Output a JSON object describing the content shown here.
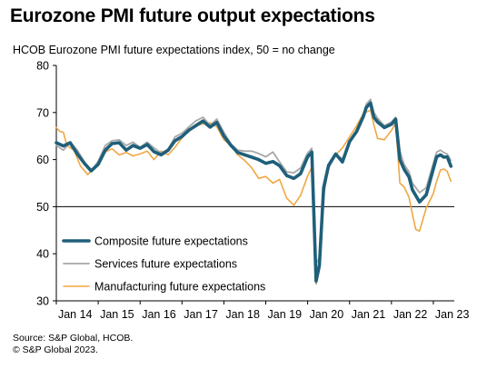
{
  "title": "Eurozone PMI future output expectations",
  "subtitle": "HCOB Eurozone PMI future expectations  index, 50 = no change",
  "source_line1": "Source: S&P Global, HCOB.",
  "source_line2": "© S&P Global 2023.",
  "chart_data": {
    "type": "line",
    "ylim": [
      30,
      80
    ],
    "y_ticks": [
      30,
      40,
      50,
      60,
      70,
      80
    ],
    "x_range": [
      2014.0,
      2023.5
    ],
    "x_ticks": [
      {
        "label": "Jan 14",
        "x": 2014
      },
      {
        "label": "Jan 15",
        "x": 2015
      },
      {
        "label": "Jan 16",
        "x": 2016
      },
      {
        "label": "Jan 17",
        "x": 2017
      },
      {
        "label": "Jan 18",
        "x": 2018
      },
      {
        "label": "Jan 19",
        "x": 2019
      },
      {
        "label": "Jan 20",
        "x": 2020
      },
      {
        "label": "Jan 21",
        "x": 2021
      },
      {
        "label": "Jan 22",
        "x": 2022
      },
      {
        "label": "Jan 23",
        "x": 2023
      }
    ],
    "reference_line": 50,
    "legend_position": "bottom-left",
    "series": [
      {
        "name": "Composite future expectations",
        "color": "#1f5f7a",
        "width": 3.6,
        "points": [
          [
            2014.0,
            63.6
          ],
          [
            2014.17,
            62.9
          ],
          [
            2014.33,
            63.6
          ],
          [
            2014.5,
            61.2
          ],
          [
            2014.67,
            59.2
          ],
          [
            2014.83,
            57.6
          ],
          [
            2015.0,
            59.0
          ],
          [
            2015.17,
            62.0
          ],
          [
            2015.33,
            63.4
          ],
          [
            2015.5,
            63.6
          ],
          [
            2015.67,
            62.0
          ],
          [
            2015.83,
            63.0
          ],
          [
            2016.0,
            62.4
          ],
          [
            2016.17,
            63.2
          ],
          [
            2016.33,
            61.7
          ],
          [
            2016.5,
            61.0
          ],
          [
            2016.67,
            62.0
          ],
          [
            2016.83,
            64.0
          ],
          [
            2017.0,
            64.9
          ],
          [
            2017.17,
            66.3
          ],
          [
            2017.33,
            67.2
          ],
          [
            2017.5,
            68.2
          ],
          [
            2017.67,
            66.9
          ],
          [
            2017.83,
            67.9
          ],
          [
            2018.0,
            65.0
          ],
          [
            2018.17,
            63.0
          ],
          [
            2018.33,
            61.5
          ],
          [
            2018.5,
            61.0
          ],
          [
            2018.67,
            60.5
          ],
          [
            2018.83,
            60.0
          ],
          [
            2019.0,
            59.2
          ],
          [
            2019.17,
            59.6
          ],
          [
            2019.33,
            58.7
          ],
          [
            2019.5,
            56.6
          ],
          [
            2019.67,
            56.0
          ],
          [
            2019.83,
            57.0
          ],
          [
            2020.0,
            60.6
          ],
          [
            2020.1,
            61.6
          ],
          [
            2020.2,
            34.2
          ],
          [
            2020.28,
            37.5
          ],
          [
            2020.38,
            54.0
          ],
          [
            2020.5,
            58.8
          ],
          [
            2020.67,
            61.2
          ],
          [
            2020.83,
            59.5
          ],
          [
            2021.0,
            63.8
          ],
          [
            2021.17,
            66.0
          ],
          [
            2021.33,
            69.2
          ],
          [
            2021.4,
            71.1
          ],
          [
            2021.5,
            72.0
          ],
          [
            2021.58,
            69.0
          ],
          [
            2021.67,
            68.0
          ],
          [
            2021.83,
            66.8
          ],
          [
            2022.0,
            67.5
          ],
          [
            2022.1,
            68.6
          ],
          [
            2022.2,
            60.0
          ],
          [
            2022.3,
            58.0
          ],
          [
            2022.42,
            56.3
          ],
          [
            2022.5,
            53.6
          ],
          [
            2022.67,
            51.0
          ],
          [
            2022.83,
            52.5
          ],
          [
            2023.0,
            58.0
          ],
          [
            2023.08,
            60.6
          ],
          [
            2023.17,
            61.0
          ],
          [
            2023.25,
            60.5
          ],
          [
            2023.33,
            60.6
          ],
          [
            2023.42,
            58.6
          ]
        ]
      },
      {
        "name": "Services future expectations",
        "color": "#a8a8a8",
        "width": 1.8,
        "points": [
          [
            2014.0,
            63.0
          ],
          [
            2014.17,
            62.0
          ],
          [
            2014.33,
            63.7
          ],
          [
            2014.5,
            62.0
          ],
          [
            2014.67,
            59.5
          ],
          [
            2014.83,
            57.5
          ],
          [
            2015.0,
            59.7
          ],
          [
            2015.17,
            63.0
          ],
          [
            2015.33,
            64.0
          ],
          [
            2015.5,
            64.2
          ],
          [
            2015.67,
            63.0
          ],
          [
            2015.83,
            63.7
          ],
          [
            2016.0,
            62.6
          ],
          [
            2016.17,
            63.7
          ],
          [
            2016.33,
            62.5
          ],
          [
            2016.5,
            61.4
          ],
          [
            2016.67,
            62.2
          ],
          [
            2016.83,
            64.8
          ],
          [
            2017.0,
            65.6
          ],
          [
            2017.17,
            67.0
          ],
          [
            2017.33,
            68.2
          ],
          [
            2017.5,
            69.0
          ],
          [
            2017.67,
            67.3
          ],
          [
            2017.83,
            68.6
          ],
          [
            2018.0,
            65.8
          ],
          [
            2018.17,
            63.3
          ],
          [
            2018.33,
            62.0
          ],
          [
            2018.5,
            61.8
          ],
          [
            2018.67,
            61.8
          ],
          [
            2018.83,
            61.3
          ],
          [
            2019.0,
            60.6
          ],
          [
            2019.17,
            61.6
          ],
          [
            2019.33,
            59.5
          ],
          [
            2019.5,
            57.4
          ],
          [
            2019.67,
            57.2
          ],
          [
            2019.83,
            58.2
          ],
          [
            2020.0,
            61.4
          ],
          [
            2020.1,
            62.4
          ],
          [
            2020.2,
            33.6
          ],
          [
            2020.28,
            36.8
          ],
          [
            2020.38,
            53.5
          ],
          [
            2020.5,
            58.2
          ],
          [
            2020.67,
            61.0
          ],
          [
            2020.83,
            60.2
          ],
          [
            2021.0,
            63.7
          ],
          [
            2021.17,
            65.7
          ],
          [
            2021.33,
            69.6
          ],
          [
            2021.4,
            71.8
          ],
          [
            2021.5,
            72.8
          ],
          [
            2021.58,
            70.0
          ],
          [
            2021.67,
            68.8
          ],
          [
            2021.83,
            67.2
          ],
          [
            2022.0,
            68.0
          ],
          [
            2022.1,
            69.0
          ],
          [
            2022.2,
            61.8
          ],
          [
            2022.3,
            59.0
          ],
          [
            2022.42,
            57.4
          ],
          [
            2022.5,
            55.0
          ],
          [
            2022.67,
            53.0
          ],
          [
            2022.83,
            54.0
          ],
          [
            2023.0,
            59.2
          ],
          [
            2023.08,
            61.6
          ],
          [
            2023.17,
            62.0
          ],
          [
            2023.25,
            61.5
          ],
          [
            2023.33,
            61.2
          ],
          [
            2023.42,
            59.8
          ]
        ]
      },
      {
        "name": "Manufacturing future expectations",
        "color": "#f0a744",
        "width": 1.6,
        "points": [
          [
            2014.0,
            66.8
          ],
          [
            2014.08,
            66.0
          ],
          [
            2014.17,
            65.8
          ],
          [
            2014.25,
            63.0
          ],
          [
            2014.42,
            62.0
          ],
          [
            2014.58,
            58.6
          ],
          [
            2014.75,
            56.8
          ],
          [
            2014.92,
            58.5
          ],
          [
            2015.0,
            59.0
          ],
          [
            2015.17,
            61.6
          ],
          [
            2015.33,
            62.3
          ],
          [
            2015.5,
            61.0
          ],
          [
            2015.67,
            61.5
          ],
          [
            2015.83,
            60.8
          ],
          [
            2016.0,
            61.2
          ],
          [
            2016.17,
            61.8
          ],
          [
            2016.33,
            60.0
          ],
          [
            2016.5,
            61.8
          ],
          [
            2016.67,
            61.0
          ],
          [
            2016.83,
            62.6
          ],
          [
            2017.0,
            64.6
          ],
          [
            2017.17,
            66.3
          ],
          [
            2017.33,
            67.2
          ],
          [
            2017.5,
            67.6
          ],
          [
            2017.67,
            67.8
          ],
          [
            2017.83,
            67.0
          ],
          [
            2018.0,
            64.2
          ],
          [
            2018.17,
            63.0
          ],
          [
            2018.33,
            61.0
          ],
          [
            2018.5,
            59.8
          ],
          [
            2018.67,
            58.2
          ],
          [
            2018.83,
            56.0
          ],
          [
            2019.0,
            56.4
          ],
          [
            2019.17,
            55.0
          ],
          [
            2019.33,
            55.8
          ],
          [
            2019.5,
            51.8
          ],
          [
            2019.67,
            50.3
          ],
          [
            2019.83,
            52.4
          ],
          [
            2020.0,
            56.5
          ],
          [
            2020.1,
            58.4
          ],
          [
            2020.2,
            38.0
          ],
          [
            2020.28,
            39.2
          ],
          [
            2020.38,
            52.2
          ],
          [
            2020.5,
            58.8
          ],
          [
            2020.67,
            61.0
          ],
          [
            2020.83,
            62.5
          ],
          [
            2021.0,
            64.8
          ],
          [
            2021.17,
            67.2
          ],
          [
            2021.33,
            69.8
          ],
          [
            2021.5,
            70.5
          ],
          [
            2021.58,
            67.4
          ],
          [
            2021.67,
            64.5
          ],
          [
            2021.83,
            64.2
          ],
          [
            2022.0,
            66.2
          ],
          [
            2022.1,
            67.8
          ],
          [
            2022.2,
            55.0
          ],
          [
            2022.3,
            54.2
          ],
          [
            2022.42,
            52.0
          ],
          [
            2022.5,
            48.4
          ],
          [
            2022.58,
            45.2
          ],
          [
            2022.67,
            44.8
          ],
          [
            2022.83,
            49.7
          ],
          [
            2023.0,
            52.8
          ],
          [
            2023.08,
            55.4
          ],
          [
            2023.17,
            57.8
          ],
          [
            2023.25,
            58.0
          ],
          [
            2023.33,
            57.5
          ],
          [
            2023.42,
            55.4
          ]
        ]
      }
    ]
  }
}
